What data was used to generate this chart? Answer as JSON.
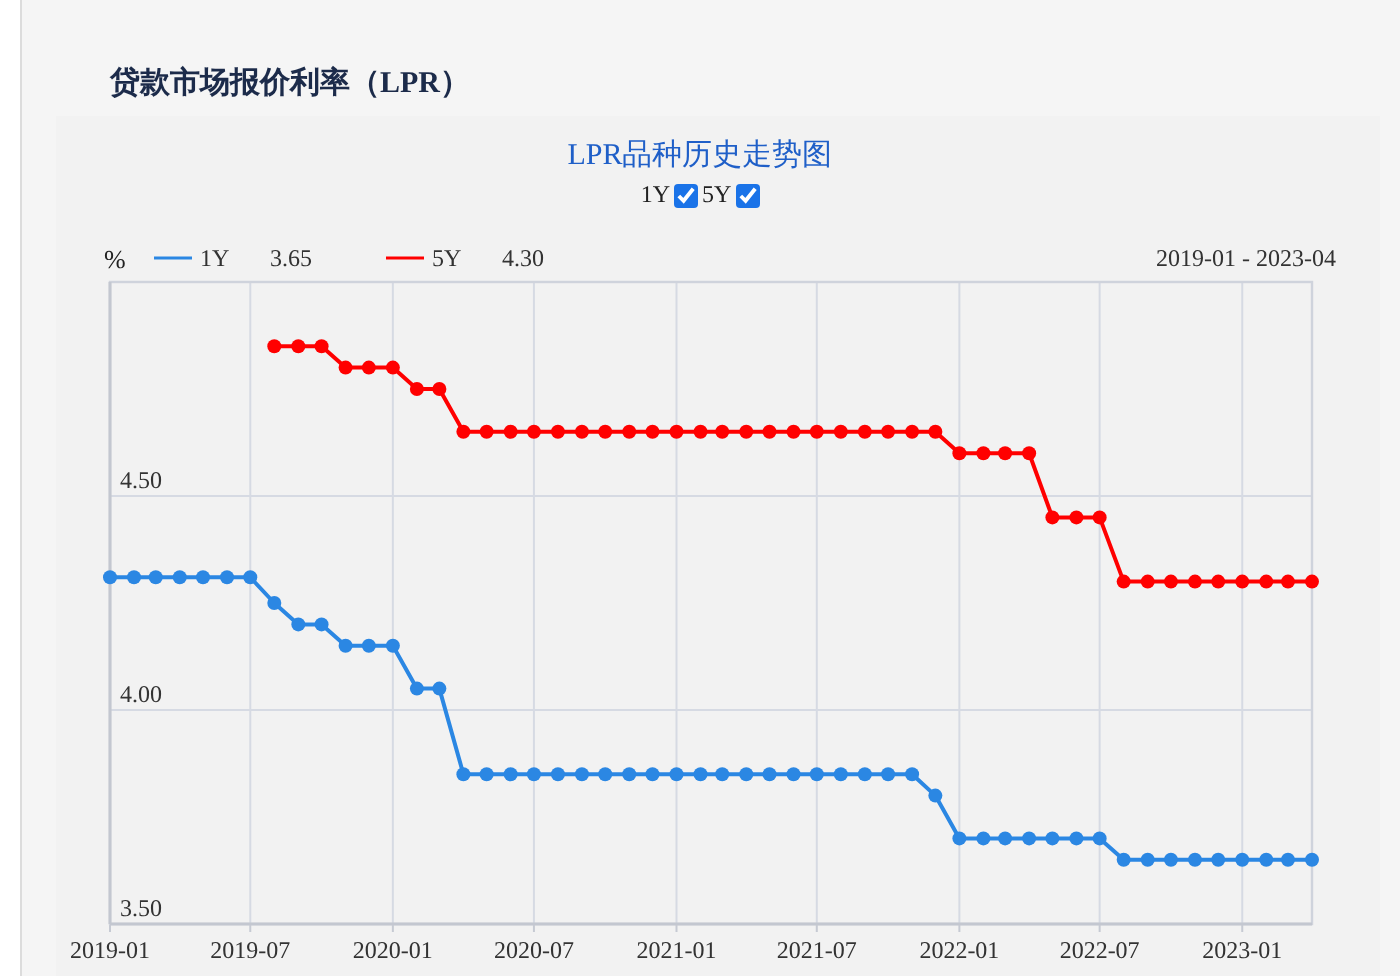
{
  "chart_data": {
    "type": "line",
    "title": "贷款市场报价利率（LPR）",
    "subtitle": "LPR品种历史走势图",
    "ylabel": "%",
    "annotations": [
      "3.65",
      "4.30",
      "2019-01 - 2023-04"
    ],
    "x": [
      "2019-01",
      "2019-02",
      "2019-03",
      "2019-04",
      "2019-05",
      "2019-06",
      "2019-07",
      "2019-08",
      "2019-09",
      "2019-10",
      "2019-11",
      "2019-12",
      "2020-01",
      "2020-02",
      "2020-03",
      "2020-04",
      "2020-05",
      "2020-06",
      "2020-07",
      "2020-08",
      "2020-09",
      "2020-10",
      "2020-11",
      "2020-12",
      "2021-01",
      "2021-02",
      "2021-03",
      "2021-04",
      "2021-05",
      "2021-06",
      "2021-07",
      "2021-08",
      "2021-09",
      "2021-10",
      "2021-11",
      "2021-12",
      "2022-01",
      "2022-02",
      "2022-03",
      "2022-04",
      "2022-05",
      "2022-06",
      "2022-07",
      "2022-08",
      "2022-09",
      "2022-10",
      "2022-11",
      "2022-12",
      "2023-01",
      "2023-02",
      "2023-03",
      "2023-04"
    ],
    "series": [
      {
        "name": "1Y",
        "color": "#2b87e3",
        "values": [
          4.31,
          4.31,
          4.31,
          4.31,
          4.31,
          4.31,
          4.31,
          4.25,
          4.2,
          4.2,
          4.15,
          4.15,
          4.15,
          4.05,
          4.05,
          3.85,
          3.85,
          3.85,
          3.85,
          3.85,
          3.85,
          3.85,
          3.85,
          3.85,
          3.85,
          3.85,
          3.85,
          3.85,
          3.85,
          3.85,
          3.85,
          3.85,
          3.85,
          3.85,
          3.85,
          3.8,
          3.7,
          3.7,
          3.7,
          3.7,
          3.7,
          3.7,
          3.7,
          3.65,
          3.65,
          3.65,
          3.65,
          3.65,
          3.65,
          3.65,
          3.65,
          3.65
        ]
      },
      {
        "name": "5Y",
        "color": "#ff0000",
        "values": [
          null,
          null,
          null,
          null,
          null,
          null,
          null,
          4.85,
          4.85,
          4.85,
          4.8,
          4.8,
          4.8,
          4.75,
          4.75,
          4.65,
          4.65,
          4.65,
          4.65,
          4.65,
          4.65,
          4.65,
          4.65,
          4.65,
          4.65,
          4.65,
          4.65,
          4.65,
          4.65,
          4.65,
          4.65,
          4.65,
          4.65,
          4.65,
          4.65,
          4.65,
          4.6,
          4.6,
          4.6,
          4.6,
          4.45,
          4.45,
          4.45,
          4.3,
          4.3,
          4.3,
          4.3,
          4.3,
          4.3,
          4.3,
          4.3,
          4.3
        ]
      }
    ],
    "xlim": [
      "2019-01",
      "2023-04"
    ],
    "xticks": [
      "2019-01",
      "2019-07",
      "2020-01",
      "2020-07",
      "2021-01",
      "2021-07",
      "2022-01",
      "2022-07",
      "2023-01"
    ],
    "ylim": [
      3.5,
      5.0
    ],
    "yticks": [
      {
        "value": 3.5,
        "label": "3.50"
      },
      {
        "value": 4.0,
        "label": "4.00"
      },
      {
        "value": 4.5,
        "label": "4.50"
      }
    ],
    "grid": true,
    "legend": "top left",
    "marker": "circle",
    "line_style": "solid"
  }
}
